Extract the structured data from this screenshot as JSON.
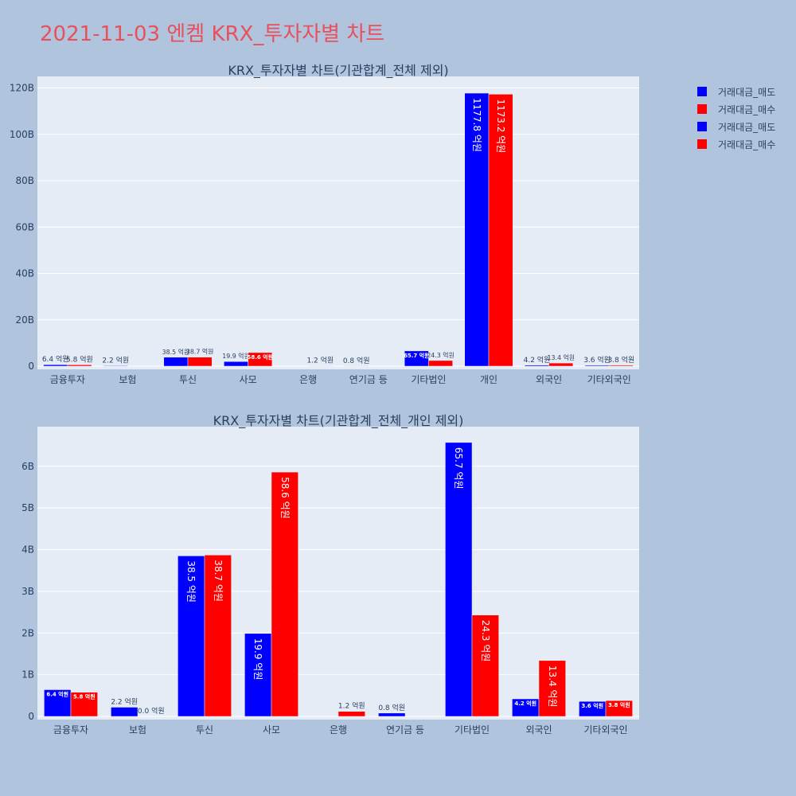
{
  "page": {
    "title": "2021-11-03 엔켐 KRX_투자자별 차트"
  },
  "legend": {
    "items": [
      {
        "label": "거래대금_매도",
        "color": "#0000ff"
      },
      {
        "label": "거래대금_매수",
        "color": "#ff0000"
      },
      {
        "label": "거래대금_매도",
        "color": "#0000ff"
      },
      {
        "label": "거래대금_매수",
        "color": "#ff0000"
      }
    ]
  },
  "chart_data": [
    {
      "type": "bar",
      "title": "KRX_투자자별 차트(기관합계_전체 제외)",
      "categories": [
        "금융투자",
        "보험",
        "투신",
        "사모",
        "은행",
        "연기금 등",
        "기타법인",
        "개인",
        "외국인",
        "기타외국인"
      ],
      "series": [
        {
          "name": "거래대금_매도",
          "color": "#0000ff",
          "values": [
            0.64,
            0.22,
            3.85,
            1.99,
            0,
            0.08,
            6.57,
            117.78,
            0.42,
            0.36
          ],
          "labels": [
            "6.4 억원",
            "2.2 억원",
            "38.5 억원",
            "19.9 억원",
            "",
            "0.8 억원",
            "65.7 억원",
            "1177.8 억원",
            "4.2 억원",
            "3.6 억원"
          ]
        },
        {
          "name": "거래대금_매수",
          "color": "#ff0000",
          "values": [
            0.58,
            0,
            3.87,
            5.86,
            0.12,
            0,
            2.43,
            117.32,
            1.34,
            0.38
          ],
          "labels": [
            "5.8 억원",
            "",
            "38.7 억원",
            "58.6 억원",
            "1.2 억원",
            "",
            "24.3 억원",
            "1173.2 억원",
            "13.4 억원",
            "3.8 억원"
          ]
        }
      ],
      "ylim": [
        0,
        125
      ],
      "yticks": [
        0,
        20,
        40,
        60,
        80,
        100,
        120
      ],
      "ytick_labels": [
        "0",
        "20B",
        "40B",
        "60B",
        "80B",
        "100B",
        "120B"
      ],
      "grid": true
    },
    {
      "type": "bar",
      "title": "KRX_투자자별 차트(기관합계_전체_개인 제외)",
      "categories": [
        "금융투자",
        "보험",
        "투신",
        "사모",
        "은행",
        "연기금 등",
        "기타법인",
        "외국인",
        "기타외국인"
      ],
      "series": [
        {
          "name": "거래대금_매도",
          "color": "#0000ff",
          "values": [
            0.64,
            0.22,
            3.85,
            1.99,
            0,
            0.08,
            6.57,
            0.42,
            0.36
          ],
          "labels": [
            "6.4 억원",
            "2.2 억원",
            "38.5 억원",
            "19.9 억원",
            "",
            "0.8 억원",
            "65.7 억원",
            "4.2 억원",
            "3.6 억원"
          ]
        },
        {
          "name": "거래대금_매수",
          "color": "#ff0000",
          "values": [
            0.58,
            0.0,
            3.87,
            5.86,
            0.12,
            0,
            2.43,
            1.34,
            0.38
          ],
          "labels": [
            "5.8 억원",
            "0.0 억원",
            "38.7 억원",
            "58.6 억원",
            "1.2 억원",
            "",
            "24.3 억원",
            "13.4 억원",
            "3.8 억원"
          ]
        }
      ],
      "ylim": [
        0,
        6.95
      ],
      "yticks": [
        0,
        1,
        2,
        3,
        4,
        5,
        6
      ],
      "ytick_labels": [
        "0",
        "1B",
        "2B",
        "3B",
        "4B",
        "5B",
        "6B"
      ],
      "grid": true
    }
  ]
}
